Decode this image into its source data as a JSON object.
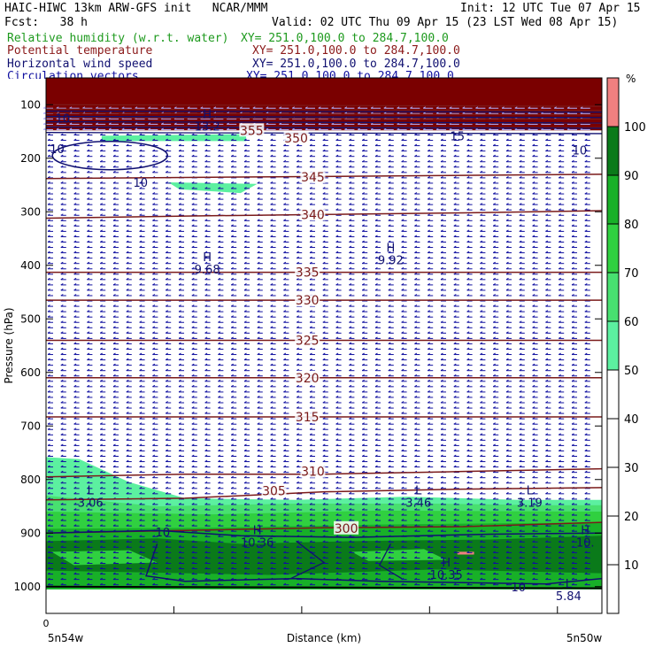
{
  "header": {
    "line1_left": "HAIC-HIWC 13km ARW-GFS init   NCAR/MMM",
    "line1_right": "Init: 12 UTC Tue 07 Apr 15",
    "fcst": "Fcst:   38 h",
    "valid": "Valid: 02 UTC Thu 09 Apr 15 (23 LST Wed 08 Apr 15)",
    "fields": [
      {
        "name": "Relative humidity (w.r.t. water)",
        "xy": "XY= 251.0,100.0 to 284.7,100.0",
        "color": "#1e9a1e"
      },
      {
        "name": "Potential temperature",
        "xy": "XY= 251.0,100.0 to 284.7,100.0",
        "color": "#8b1a1a"
      },
      {
        "name": "Horizontal wind speed",
        "xy": "XY= 251.0,100.0 to 284.7,100.0",
        "color": "#101070"
      },
      {
        "name": "Circulation vectors",
        "xy": "XY= 251.0,100.0 to 284.7,100.0",
        "color": "#1010a0"
      }
    ]
  },
  "chart_data": {
    "type": "cross-section",
    "ylabel": "Pressure (hPa)",
    "xlabel": "Distance (km)",
    "x_start_label": "5n54w",
    "x_end_label": "5n50w",
    "x_origin_tick": "0",
    "y_axis": {
      "range": [
        1050,
        50
      ],
      "ticks": [
        100,
        200,
        300,
        400,
        500,
        600,
        700,
        800,
        900,
        1000
      ]
    },
    "colorbar": {
      "unit": "%",
      "ticks": [
        10,
        20,
        30,
        40,
        50,
        60,
        70,
        80,
        90,
        100
      ],
      "bands": [
        {
          "from": 50,
          "to": 60,
          "color": "#5cf0a0"
        },
        {
          "from": 60,
          "to": 70,
          "color": "#48e070"
        },
        {
          "from": 70,
          "to": 80,
          "color": "#30d040"
        },
        {
          "from": 80,
          "to": 90,
          "color": "#18b028"
        },
        {
          "from": 90,
          "to": 100,
          "color": "#0a7a1a"
        },
        {
          "from": 100,
          "to": 110,
          "color": "#f08080"
        }
      ]
    },
    "theta_labels": [
      {
        "value": "355",
        "x": 0.37,
        "p": 148
      },
      {
        "value": "350",
        "x": 0.45,
        "p": 162
      },
      {
        "value": "345",
        "x": 0.48,
        "p": 235
      },
      {
        "value": "340",
        "x": 0.48,
        "p": 305
      },
      {
        "value": "335",
        "x": 0.47,
        "p": 413
      },
      {
        "value": "330",
        "x": 0.47,
        "p": 465
      },
      {
        "value": "325",
        "x": 0.47,
        "p": 540
      },
      {
        "value": "320",
        "x": 0.47,
        "p": 610
      },
      {
        "value": "315",
        "x": 0.47,
        "p": 683
      },
      {
        "value": "310",
        "x": 0.48,
        "p": 785
      },
      {
        "value": "305",
        "x": 0.41,
        "p": 821
      },
      {
        "value": "300",
        "x": 0.54,
        "p": 891
      }
    ],
    "theta_lines": [
      {
        "value": 345,
        "p": [
          238,
          236,
          234,
          232,
          230
        ]
      },
      {
        "value": 340,
        "p": [
          312,
          308,
          305,
          302,
          298
        ]
      },
      {
        "value": 335,
        "p": [
          413,
          413,
          413,
          413,
          413
        ]
      },
      {
        "value": 330,
        "p": [
          465,
          465,
          465,
          465,
          465
        ]
      },
      {
        "value": 325,
        "p": [
          540,
          540,
          540,
          540,
          540
        ]
      },
      {
        "value": 320,
        "p": [
          610,
          610,
          610,
          610,
          610
        ]
      },
      {
        "value": 315,
        "p": [
          683,
          683,
          683,
          683,
          683
        ]
      },
      {
        "value": 310,
        "p": [
          795,
          790,
          790,
          785,
          780
        ]
      },
      {
        "value": 305,
        "p": [
          838,
          835,
          823,
          818,
          815
        ]
      },
      {
        "value": 300,
        "p": [
          900,
          895,
          890,
          888,
          880
        ]
      }
    ],
    "wind_labels": [
      {
        "text": "10",
        "x": 0.03,
        "p": 125
      },
      {
        "text": "10",
        "x": 0.02,
        "p": 182
      },
      {
        "text": "10",
        "x": 0.17,
        "p": 245
      },
      {
        "text": "15",
        "x": 0.74,
        "p": 158
      },
      {
        "text": "10",
        "x": 0.96,
        "p": 185
      },
      {
        "text": "10",
        "x": 0.21,
        "p": 898
      },
      {
        "text": "10",
        "x": 0.85,
        "p": 1000
      }
    ],
    "extrema": [
      {
        "type": "H",
        "value": "13.2",
        "x": 0.29,
        "p": 125
      },
      {
        "type": "H",
        "value": "9.68",
        "x": 0.29,
        "p": 392
      },
      {
        "type": "H",
        "value": "9.92",
        "x": 0.62,
        "p": 375
      },
      {
        "type": "L",
        "value": "3.06",
        "x": 0.08,
        "p": 828
      },
      {
        "type": "L",
        "value": "3.46",
        "x": 0.67,
        "p": 828
      },
      {
        "type": "L",
        "value": "3.19",
        "x": 0.87,
        "p": 828
      },
      {
        "type": "H",
        "value": "10.36",
        "x": 0.38,
        "p": 902
      },
      {
        "type": "H",
        "value": "10.35",
        "x": 0.72,
        "p": 962
      },
      {
        "type": "H",
        "value": "10.",
        "x": 0.97,
        "p": 902
      },
      {
        "type": "L",
        "value": "5.84",
        "x": 0.94,
        "p": 1002
      }
    ]
  }
}
